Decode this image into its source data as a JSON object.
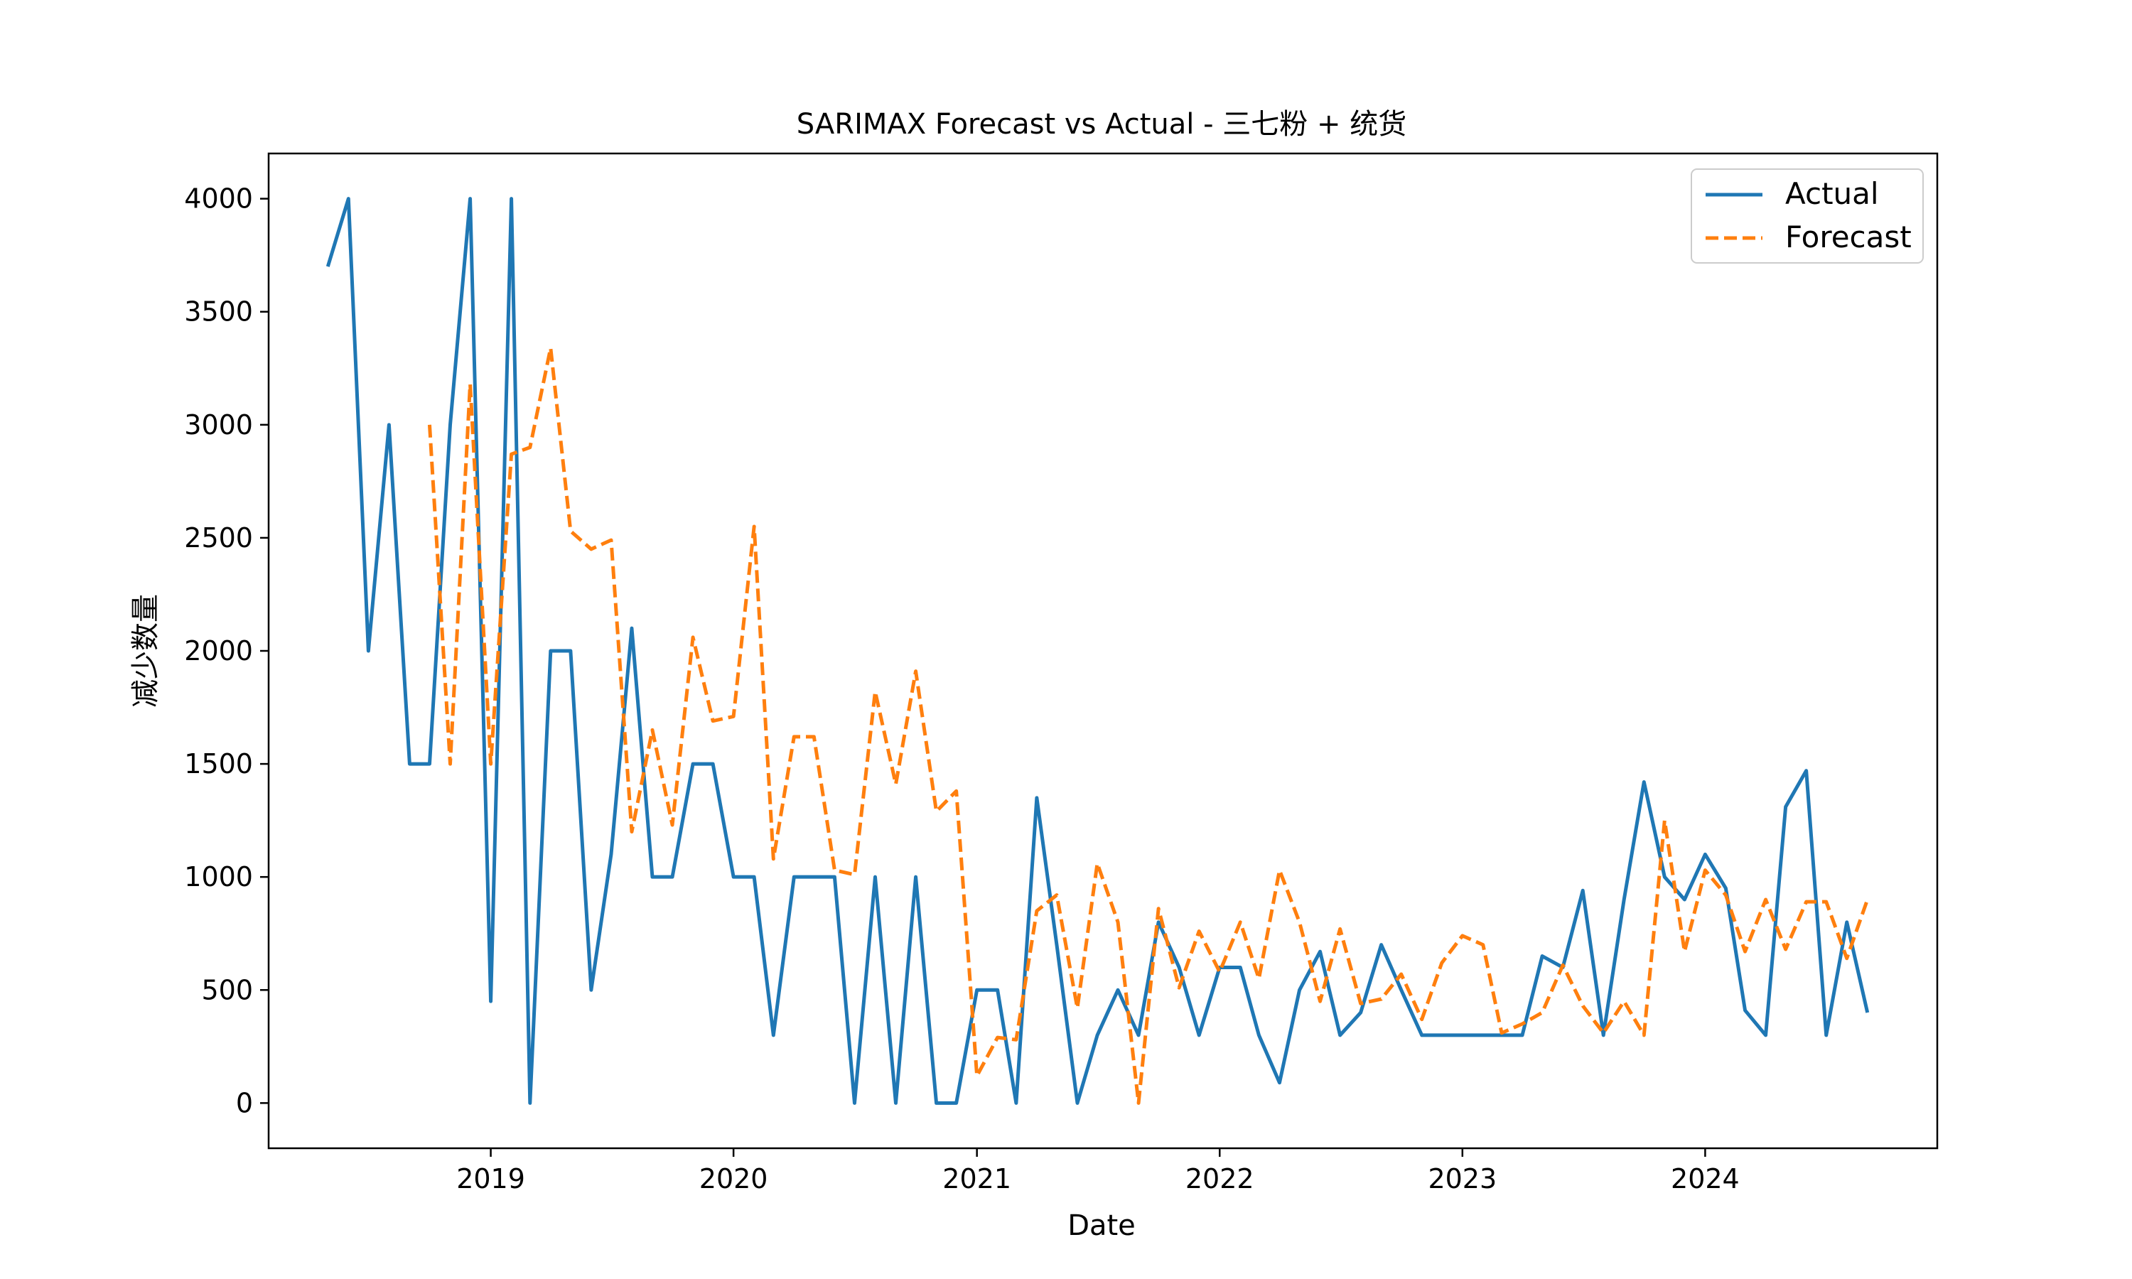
{
  "chart_data": {
    "type": "line",
    "title": "SARIMAX Forecast vs Actual - 三七粉 + 统货",
    "xlabel": "Date",
    "ylabel": "减少数量",
    "xlim": [
      "2018-02-01",
      "2024-12-15"
    ],
    "ylim": [
      -200,
      4200
    ],
    "x_ticks": [
      "2019",
      "2020",
      "2021",
      "2022",
      "2023",
      "2024"
    ],
    "y_ticks": [
      "0",
      "500",
      "1000",
      "1500",
      "2000",
      "2500",
      "3000",
      "3500",
      "4000"
    ],
    "grid": false,
    "legend_position": "upper right",
    "series": [
      {
        "name": "Actual",
        "color": "#1f77b4",
        "style": "solid",
        "x": [
          "2018-05",
          "2018-06",
          "2018-07",
          "2018-08",
          "2018-09",
          "2018-10",
          "2018-11",
          "2018-12",
          "2019-01",
          "2019-02",
          "2019-03",
          "2019-04",
          "2019-05",
          "2019-06",
          "2019-07",
          "2019-08",
          "2019-09",
          "2019-10",
          "2019-11",
          "2019-12",
          "2020-01",
          "2020-02",
          "2020-03",
          "2020-04",
          "2020-05",
          "2020-06",
          "2020-07",
          "2020-08",
          "2020-09",
          "2020-10",
          "2020-11",
          "2020-12",
          "2021-01",
          "2021-02",
          "2021-03",
          "2021-04",
          "2021-05",
          "2021-06",
          "2021-07",
          "2021-08",
          "2021-09",
          "2021-10",
          "2021-11",
          "2021-12",
          "2022-01",
          "2022-02",
          "2022-03",
          "2022-04",
          "2022-05",
          "2022-06",
          "2022-07",
          "2022-08",
          "2022-09",
          "2022-10",
          "2022-11",
          "2022-12",
          "2023-01",
          "2023-02",
          "2023-03",
          "2023-04",
          "2023-05",
          "2023-06",
          "2023-07",
          "2023-08",
          "2023-09",
          "2023-10",
          "2023-11",
          "2023-12",
          "2024-01",
          "2024-02",
          "2024-03",
          "2024-04",
          "2024-05",
          "2024-06",
          "2024-07",
          "2024-08",
          "2024-09"
        ],
        "values": [
          3700,
          4000,
          2000,
          3000,
          1500,
          1500,
          3000,
          4000,
          450,
          4000,
          0,
          2000,
          2000,
          500,
          1100,
          2100,
          1000,
          1000,
          1500,
          1500,
          1000,
          1000,
          300,
          1000,
          1000,
          1000,
          0,
          1000,
          0,
          1000,
          0,
          0,
          500,
          500,
          0,
          1350,
          700,
          0,
          300,
          500,
          300,
          800,
          600,
          300,
          600,
          600,
          300,
          90,
          500,
          670,
          300,
          400,
          700,
          500,
          300,
          300,
          300,
          300,
          300,
          300,
          650,
          600,
          940,
          300,
          900,
          1420,
          1000,
          900,
          1100,
          950,
          410,
          300,
          1310,
          1470,
          300,
          800,
          400
        ]
      },
      {
        "name": "Forecast",
        "color": "#ff7f0e",
        "style": "dashed",
        "x": [
          "2018-10",
          "2018-11",
          "2018-12",
          "2019-01",
          "2019-02",
          "2019-03",
          "2019-04",
          "2019-05",
          "2019-06",
          "2019-07",
          "2019-08",
          "2019-09",
          "2019-10",
          "2019-11",
          "2019-12",
          "2020-01",
          "2020-02",
          "2020-03",
          "2020-04",
          "2020-05",
          "2020-06",
          "2020-07",
          "2020-08",
          "2020-09",
          "2020-10",
          "2020-11",
          "2020-12",
          "2021-01",
          "2021-02",
          "2021-03",
          "2021-04",
          "2021-05",
          "2021-06",
          "2021-07",
          "2021-08",
          "2021-09",
          "2021-10",
          "2021-11",
          "2021-12",
          "2022-01",
          "2022-02",
          "2022-03",
          "2022-04",
          "2022-05",
          "2022-06",
          "2022-07",
          "2022-08",
          "2022-09",
          "2022-10",
          "2022-11",
          "2022-12",
          "2023-01",
          "2023-02",
          "2023-03",
          "2023-04",
          "2023-05",
          "2023-06",
          "2023-07",
          "2023-08",
          "2023-09",
          "2023-10",
          "2023-11",
          "2023-12",
          "2024-01",
          "2024-02",
          "2024-03",
          "2024-04",
          "2024-05",
          "2024-06",
          "2024-07",
          "2024-08",
          "2024-09"
        ],
        "values": [
          3000,
          1500,
          3180,
          1500,
          2870,
          2900,
          3340,
          2530,
          2450,
          2490,
          1200,
          1650,
          1230,
          2060,
          1690,
          1710,
          2550,
          1080,
          1620,
          1620,
          1030,
          1010,
          1820,
          1410,
          1910,
          1290,
          1380,
          120,
          290,
          280,
          850,
          920,
          420,
          1060,
          800,
          0,
          860,
          510,
          760,
          580,
          800,
          550,
          1030,
          800,
          450,
          770,
          440,
          460,
          570,
          370,
          620,
          740,
          700,
          310,
          350,
          400,
          610,
          430,
          310,
          450,
          300,
          1250,
          670,
          1030,
          920,
          670,
          900,
          680,
          890,
          890,
          640,
          900
        ]
      }
    ]
  }
}
